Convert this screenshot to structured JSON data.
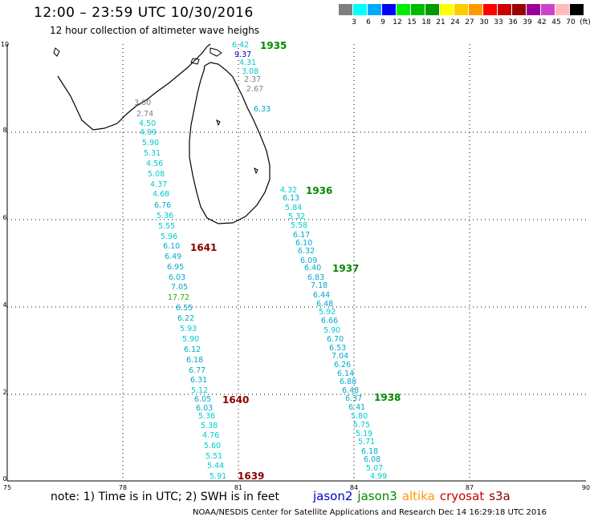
{
  "header": {
    "title": "12:00 – 23:59 UTC 10/30/2016",
    "subtitle": "12 hour collection of altimeter wave heighs"
  },
  "color_scale": {
    "colors": [
      "#7f7f7f",
      "#00ffff",
      "#00aaff",
      "#0000ff",
      "#00ee00",
      "#00bb00",
      "#009900",
      "#ffff00",
      "#ffcc00",
      "#ff9900",
      "#ff0000",
      "#cc0000",
      "#990000",
      "#990099",
      "#cc44cc",
      "#ffbbbb",
      "#000000"
    ],
    "labels": [
      "3",
      "6",
      "9",
      "12",
      "15",
      "18",
      "21",
      "24",
      "27",
      "30",
      "33",
      "36",
      "39",
      "42",
      "45",
      "70",
      "(ft)"
    ]
  },
  "axes": {
    "lon_ticks": [
      "75",
      "78",
      "81",
      "84",
      "87",
      "90"
    ],
    "lat_ticks": [
      "0",
      "2",
      "4",
      "6",
      "8",
      "10"
    ]
  },
  "passes": [
    {
      "label": "1935",
      "color": "#008800"
    },
    {
      "label": "1936",
      "color": "#008800"
    },
    {
      "label": "1937",
      "color": "#008800"
    },
    {
      "label": "1938",
      "color": "#008800"
    },
    {
      "label": "1641",
      "color": "#880000"
    },
    {
      "label": "1640",
      "color": "#880000"
    },
    {
      "label": "1639",
      "color": "#880000"
    }
  ],
  "observations": [
    {
      "v": "6.42",
      "c": "#00cccc"
    },
    {
      "v": "9.37",
      "c": "#0000cc"
    },
    {
      "v": "4.31",
      "c": "#00cccc"
    },
    {
      "v": "3.08",
      "c": "#00cccc"
    },
    {
      "v": "2.37",
      "c": "#808080"
    },
    {
      "v": "2.67",
      "c": "#808080"
    },
    {
      "v": "6.33",
      "c": "#00aacc"
    },
    {
      "v": "3.00",
      "c": "#808080"
    },
    {
      "v": "2.74",
      "c": "#808080"
    },
    {
      "v": "4.50",
      "c": "#00cccc"
    },
    {
      "v": "4.99",
      "c": "#00cccc"
    },
    {
      "v": "5.90",
      "c": "#00cccc"
    },
    {
      "v": "5.31",
      "c": "#00cccc"
    },
    {
      "v": "4.56",
      "c": "#00cccc"
    },
    {
      "v": "5.08",
      "c": "#00cccc"
    },
    {
      "v": "4.37",
      "c": "#00cccc"
    },
    {
      "v": "4.68",
      "c": "#00cccc"
    },
    {
      "v": "6.76",
      "c": "#00aacc"
    },
    {
      "v": "5.36",
      "c": "#00cccc"
    },
    {
      "v": "5.55",
      "c": "#00cccc"
    },
    {
      "v": "5.96",
      "c": "#00cccc"
    },
    {
      "v": "6.10",
      "c": "#00aacc"
    },
    {
      "v": "6.49",
      "c": "#00aacc"
    },
    {
      "v": "6.95",
      "c": "#00aacc"
    },
    {
      "v": "6.03",
      "c": "#00aacc"
    },
    {
      "v": "7.05",
      "c": "#00aacc"
    },
    {
      "v": "17.72",
      "c": "#33aa00"
    },
    {
      "v": "6.55",
      "c": "#00aacc"
    },
    {
      "v": "6.22",
      "c": "#00aacc"
    },
    {
      "v": "5.93",
      "c": "#00cccc"
    },
    {
      "v": "5.90",
      "c": "#00cccc"
    },
    {
      "v": "6.12",
      "c": "#00aacc"
    },
    {
      "v": "6.18",
      "c": "#00aacc"
    },
    {
      "v": "6.77",
      "c": "#00aacc"
    },
    {
      "v": "6.31",
      "c": "#00aacc"
    },
    {
      "v": "5.12",
      "c": "#00cccc"
    },
    {
      "v": "6.05",
      "c": "#00aacc"
    },
    {
      "v": "6.03",
      "c": "#00aacc"
    },
    {
      "v": "5.36",
      "c": "#00cccc"
    },
    {
      "v": "5.38",
      "c": "#00cccc"
    },
    {
      "v": "4.76",
      "c": "#00cccc"
    },
    {
      "v": "5.60",
      "c": "#00cccc"
    },
    {
      "v": "5.51",
      "c": "#00cccc"
    },
    {
      "v": "5.44",
      "c": "#00cccc"
    },
    {
      "v": "5.91",
      "c": "#00cccc"
    },
    {
      "v": "4.32",
      "c": "#00cccc"
    },
    {
      "v": "6.13",
      "c": "#00aacc"
    },
    {
      "v": "5.84",
      "c": "#00cccc"
    },
    {
      "v": "5.32",
      "c": "#00cccc"
    },
    {
      "v": "5.58",
      "c": "#00cccc"
    },
    {
      "v": "6.17",
      "c": "#00aacc"
    },
    {
      "v": "6.10",
      "c": "#00aacc"
    },
    {
      "v": "6.32",
      "c": "#00aacc"
    },
    {
      "v": "6.09",
      "c": "#00aacc"
    },
    {
      "v": "6.40",
      "c": "#00aacc"
    },
    {
      "v": "6.83",
      "c": "#00aacc"
    },
    {
      "v": "7.18",
      "c": "#00aacc"
    },
    {
      "v": "6.44",
      "c": "#00aacc"
    },
    {
      "v": "6.48",
      "c": "#00aacc"
    },
    {
      "v": "5.92",
      "c": "#00cccc"
    },
    {
      "v": "6.66",
      "c": "#00aacc"
    },
    {
      "v": "5.90",
      "c": "#00cccc"
    },
    {
      "v": "6.70",
      "c": "#00aacc"
    },
    {
      "v": "6.53",
      "c": "#00aacc"
    },
    {
      "v": "7.04",
      "c": "#00aacc"
    },
    {
      "v": "6.26",
      "c": "#00aacc"
    },
    {
      "v": "6.14",
      "c": "#00aacc"
    },
    {
      "v": "6.88",
      "c": "#00aacc"
    },
    {
      "v": "6.48",
      "c": "#00aacc"
    },
    {
      "v": "6.37",
      "c": "#00aacc"
    },
    {
      "v": "6.41",
      "c": "#00aacc"
    },
    {
      "v": "5.80",
      "c": "#00cccc"
    },
    {
      "v": "5.75",
      "c": "#00cccc"
    },
    {
      "v": "5.19",
      "c": "#00cccc"
    },
    {
      "v": "5.71",
      "c": "#00cccc"
    },
    {
      "v": "6.18",
      "c": "#00aacc"
    },
    {
      "v": "6.08",
      "c": "#00aacc"
    },
    {
      "v": "5.07",
      "c": "#00cccc"
    },
    {
      "v": "4.99",
      "c": "#00cccc"
    }
  ],
  "note": "note: 1) Time is in UTC; 2) SWH is in feet",
  "legend": [
    {
      "name": "jason2",
      "color": "#0000cc"
    },
    {
      "name": "jason3",
      "color": "#008800"
    },
    {
      "name": "altika",
      "color": "#ff9900"
    },
    {
      "name": "cryosat",
      "color": "#cc0000"
    },
    {
      "name": "s3a",
      "color": "#880000"
    }
  ],
  "footer": "NOAA/NESDIS Center for Satellite Applications and Research   Dec 14 16:29:18 UTC 2016"
}
